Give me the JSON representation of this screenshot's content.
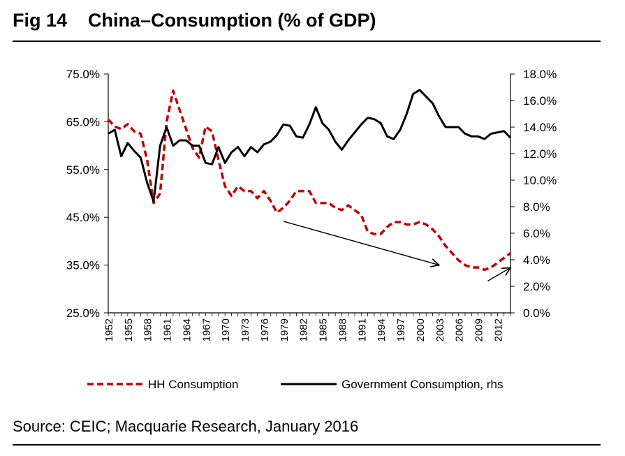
{
  "figure": {
    "label": "Fig 14",
    "title": "China–Consumption (% of GDP)",
    "source": "Source: CEIC; Macquarie Research, January 2016"
  },
  "chart_data": {
    "type": "line",
    "x_ticks": [
      "1952",
      "1955",
      "1958",
      "1961",
      "1964",
      "1967",
      "1970",
      "1973",
      "1976",
      "1979",
      "1982",
      "1985",
      "1988",
      "1991",
      "1994",
      "1997",
      "2000",
      "2003",
      "2006",
      "2009",
      "2012"
    ],
    "xlim": [
      1952,
      2014
    ],
    "y_left": {
      "range": [
        25,
        75
      ],
      "ticks": [
        "25.0%",
        "35.0%",
        "45.0%",
        "55.0%",
        "65.0%",
        "75.0%"
      ],
      "tick_values": [
        25,
        35,
        45,
        55,
        65,
        75
      ]
    },
    "y_right": {
      "range": [
        0,
        18
      ],
      "ticks": [
        "0.0%",
        "2.0%",
        "4.0%",
        "6.0%",
        "8.0%",
        "10.0%",
        "12.0%",
        "14.0%",
        "16.0%",
        "18.0%"
      ],
      "tick_values": [
        0,
        2,
        4,
        6,
        8,
        10,
        12,
        14,
        16,
        18
      ]
    },
    "grid": false,
    "legend_position": "bottom",
    "series": [
      {
        "name": "HH Consumption",
        "axis": "left",
        "color": "#c00000",
        "style": "dashed",
        "x": [
          1952,
          1953,
          1954,
          1955,
          1956,
          1957,
          1958,
          1959,
          1960,
          1961,
          1962,
          1963,
          1964,
          1965,
          1966,
          1967,
          1968,
          1969,
          1970,
          1971,
          1972,
          1973,
          1974,
          1975,
          1976,
          1977,
          1978,
          1979,
          1980,
          1981,
          1982,
          1983,
          1984,
          1985,
          1986,
          1987,
          1988,
          1989,
          1990,
          1991,
          1992,
          1993,
          1994,
          1995,
          1996,
          1997,
          1998,
          1999,
          2000,
          2001,
          2002,
          2003,
          2004,
          2005,
          2006,
          2007,
          2008,
          2009,
          2010,
          2011,
          2012,
          2013,
          2014
        ],
        "y": [
          65.5,
          64,
          63.5,
          64.5,
          63,
          62.5,
          57,
          48,
          50,
          65,
          71.5,
          67.5,
          63.5,
          59.5,
          57.5,
          64,
          63,
          57,
          51.5,
          49.5,
          51.5,
          50.5,
          50.5,
          49,
          50.5,
          48.5,
          46,
          47,
          48.5,
          50.5,
          50.5,
          50.5,
          48,
          48,
          48,
          47,
          46.5,
          47.5,
          46.5,
          45.5,
          42,
          41.5,
          41.5,
          43,
          44,
          44,
          43.5,
          43.5,
          44,
          43.5,
          42.5,
          41,
          39,
          37.5,
          36,
          35,
          34.5,
          34.5,
          34,
          34.5,
          35.5,
          36.5,
          37.5
        ]
      },
      {
        "name": "Government Consumption, rhs",
        "axis": "right",
        "color": "#000000",
        "style": "solid",
        "x": [
          1952,
          1953,
          1954,
          1955,
          1956,
          1957,
          1958,
          1959,
          1960,
          1961,
          1962,
          1963,
          1964,
          1965,
          1966,
          1967,
          1968,
          1969,
          1970,
          1971,
          1972,
          1973,
          1974,
          1975,
          1976,
          1977,
          1978,
          1979,
          1980,
          1981,
          1982,
          1983,
          1984,
          1985,
          1986,
          1987,
          1988,
          1989,
          1990,
          1991,
          1992,
          1993,
          1994,
          1995,
          1996,
          1997,
          1998,
          1999,
          2000,
          2001,
          2002,
          2003,
          2004,
          2005,
          2006,
          2007,
          2008,
          2009,
          2010,
          2011,
          2012,
          2013,
          2014
        ],
        "y": [
          13.5,
          13.8,
          11.8,
          12.8,
          12.2,
          11.7,
          9.8,
          8.4,
          12.6,
          14.0,
          12.6,
          13.0,
          13.0,
          12.6,
          12.6,
          11.3,
          11.2,
          12.5,
          11.3,
          12.1,
          12.5,
          11.8,
          12.5,
          12.1,
          12.7,
          12.9,
          13.4,
          14.2,
          14.1,
          13.3,
          13.2,
          14.2,
          15.5,
          14.3,
          13.8,
          12.9,
          12.3,
          13.0,
          13.6,
          14.2,
          14.7,
          14.6,
          14.3,
          13.3,
          13.1,
          13.8,
          15.0,
          16.5,
          16.8,
          16.3,
          15.8,
          14.8,
          14.0,
          14.0,
          14.0,
          13.5,
          13.3,
          13.3,
          13.1,
          13.5,
          13.6,
          13.7,
          13.2
        ]
      }
    ],
    "annotations": [
      {
        "type": "arrow",
        "from": [
          1979,
          6.9
        ],
        "to": [
          2003,
          3.6
        ],
        "axis": "right"
      },
      {
        "type": "arrow",
        "from": [
          2010.5,
          2.4
        ],
        "to": [
          2014,
          3.4
        ],
        "axis": "right"
      }
    ]
  }
}
